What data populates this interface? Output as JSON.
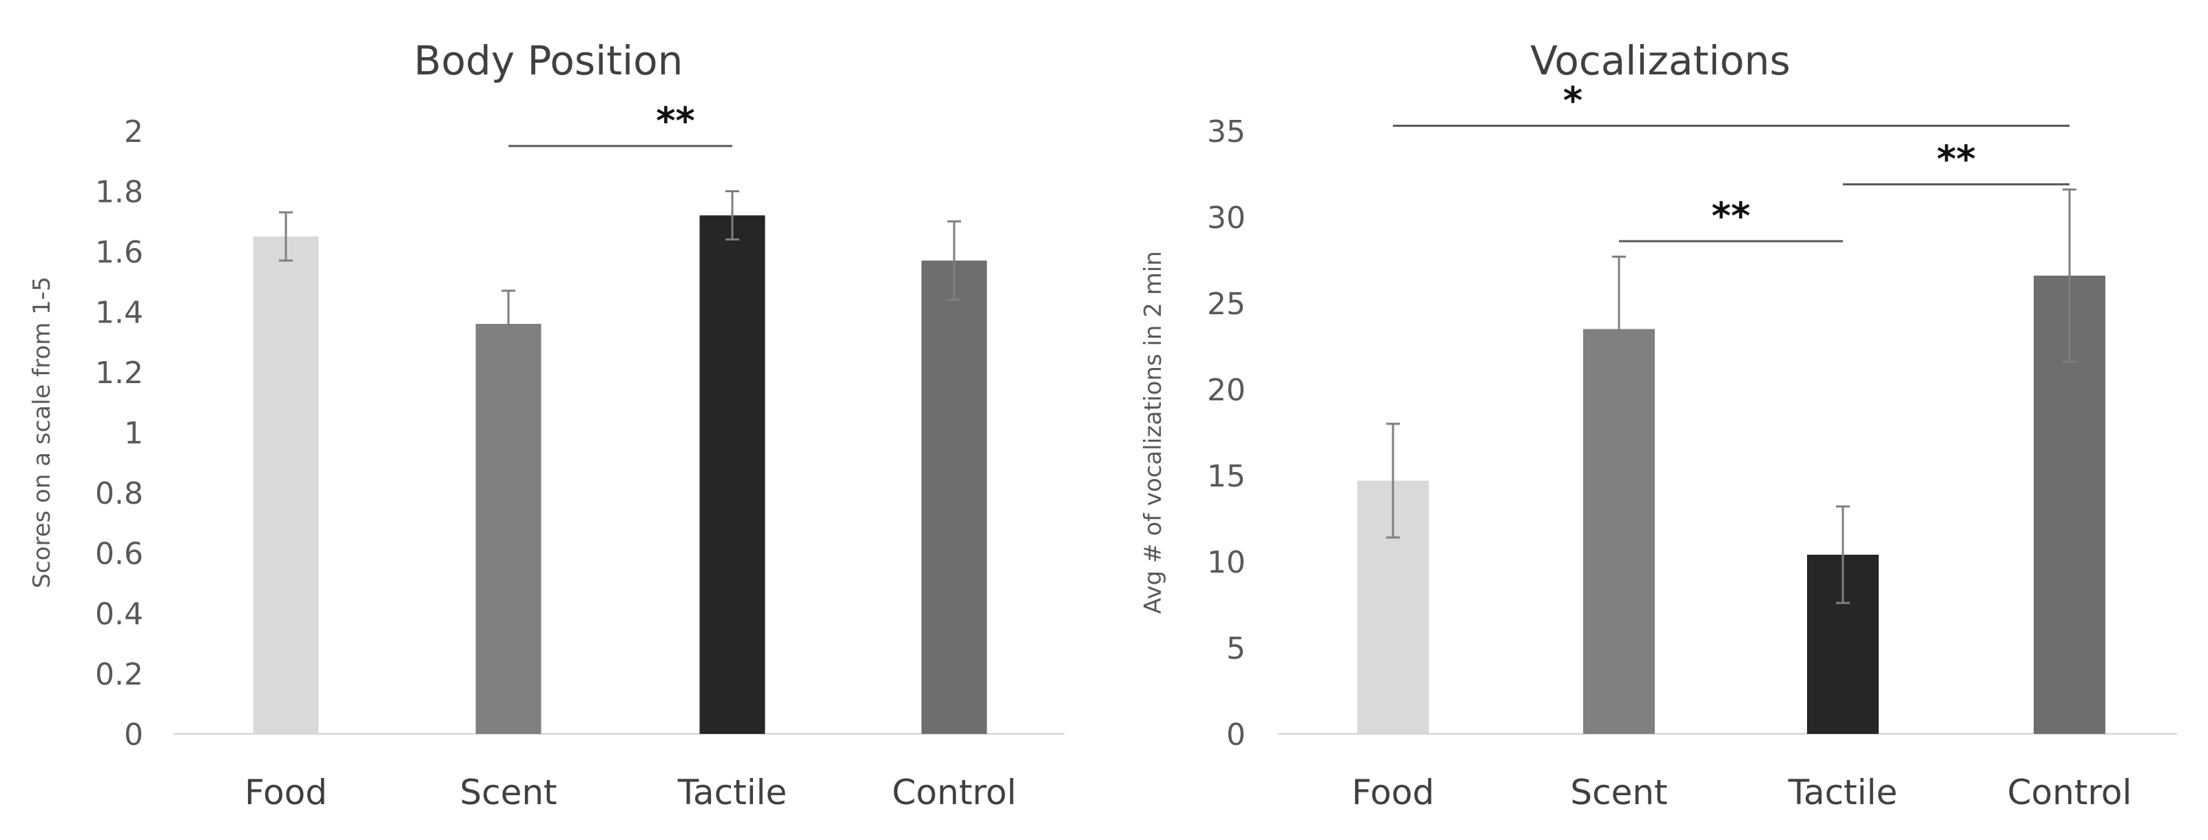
{
  "chart_data": [
    {
      "type": "bar",
      "title": "Body Position",
      "xlabel": "",
      "ylabel": "Scores on a scale from 1-5",
      "categories": [
        "Food",
        "Scent",
        "Tactile",
        "Control"
      ],
      "values": [
        1.65,
        1.36,
        1.72,
        1.57
      ],
      "errors": [
        0.08,
        0.11,
        0.08,
        0.13
      ],
      "colors": [
        "#d9d9d9",
        "#808080",
        "#262626",
        "#6e6e6e"
      ],
      "ylim": [
        0,
        2
      ],
      "yticks": [
        "0",
        "0.2",
        "0.4",
        "0.6",
        "0.8",
        "1",
        "1.2",
        "1.4",
        "1.6",
        "1.8",
        "2"
      ],
      "grid": false,
      "significance": [
        {
          "from": 1,
          "to": 2,
          "level": 1.95,
          "label": "**"
        }
      ]
    },
    {
      "type": "bar",
      "title": "Vocalizations",
      "xlabel": "",
      "ylabel": "Avg # of vocalizations in 2 min",
      "categories": [
        "Food",
        "Scent",
        "Tactile",
        "Control"
      ],
      "values": [
        14.7,
        23.5,
        10.4,
        26.6
      ],
      "errors": [
        3.3,
        4.2,
        2.8,
        5.0
      ],
      "colors": [
        "#d9d9d9",
        "#808080",
        "#262626",
        "#6e6e6e"
      ],
      "ylim": [
        0,
        35
      ],
      "yticks": [
        "0",
        "5",
        "10",
        "15",
        "20",
        "25",
        "30",
        "35"
      ],
      "grid": false,
      "significance": [
        {
          "from": 0,
          "to": 3,
          "level": 35.3,
          "label": "*"
        },
        {
          "from": 2,
          "to": 3,
          "level": 31.9,
          "label": "**"
        },
        {
          "from": 1,
          "to": 2,
          "level": 28.6,
          "label": "**"
        }
      ]
    }
  ]
}
